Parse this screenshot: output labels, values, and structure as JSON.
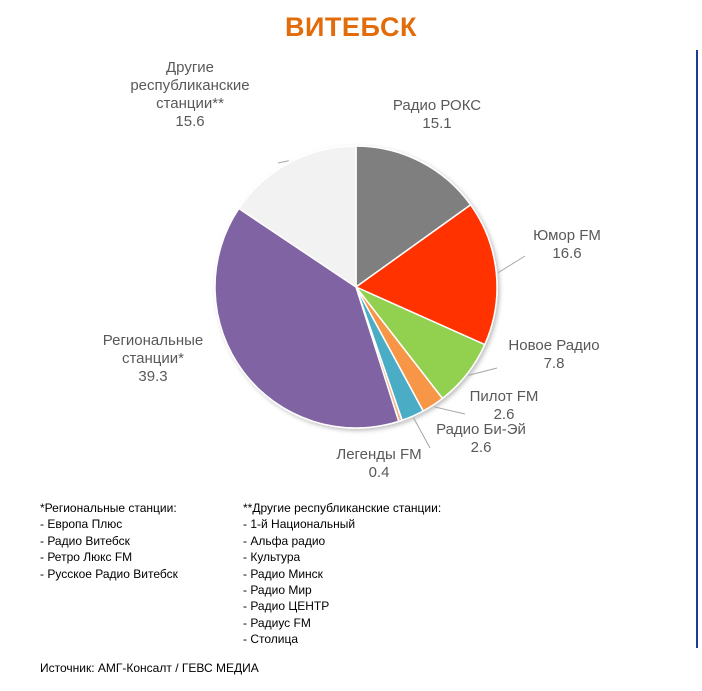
{
  "title": "ВИТЕБСК",
  "chart_data": {
    "type": "pie",
    "slices": [
      {
        "label_lines": [
          "Радио РОКС"
        ],
        "value": 15.1,
        "color": "#7f7f7f"
      },
      {
        "label_lines": [
          "Юмор FM"
        ],
        "value": 16.6,
        "color": "#ff3300"
      },
      {
        "label_lines": [
          "Новое Радио"
        ],
        "value": 7.8,
        "color": "#92d050"
      },
      {
        "label_lines": [
          "Пилот FM"
        ],
        "value": 2.6,
        "color": "#f79646"
      },
      {
        "label_lines": [
          "Радио Би-Эй"
        ],
        "value": 2.6,
        "color": "#4bacc6"
      },
      {
        "label_lines": [
          "Легенды FM"
        ],
        "value": 0.4,
        "color": "#f2b48b"
      },
      {
        "label_lines": [
          "Региональные",
          "станции*"
        ],
        "value": 39.3,
        "color": "#8064a2"
      },
      {
        "label_lines": [
          "Другие",
          "республиканские",
          "станции**"
        ],
        "value": 15.6,
        "color": "#f2f2f2"
      }
    ]
  },
  "notes": {
    "regional": {
      "heading": "*Региональные станции:",
      "items": [
        "- Европа Плюс",
        "- Радио Витебск",
        "- Ретро Люкс FM",
        "- Русское Радио Витебск"
      ]
    },
    "other": {
      "heading": "**Другие республиканские станции:",
      "items": [
        "- 1-й Национальный",
        "- Альфа радио",
        "- Культура",
        "- Радио Минск",
        "- Радио Мир",
        "- Радио ЦЕНТР",
        "- Радиус FM",
        "- Столица"
      ]
    }
  },
  "source": "Источник: АМГ-Консалт / ГЕВС МЕДИА"
}
